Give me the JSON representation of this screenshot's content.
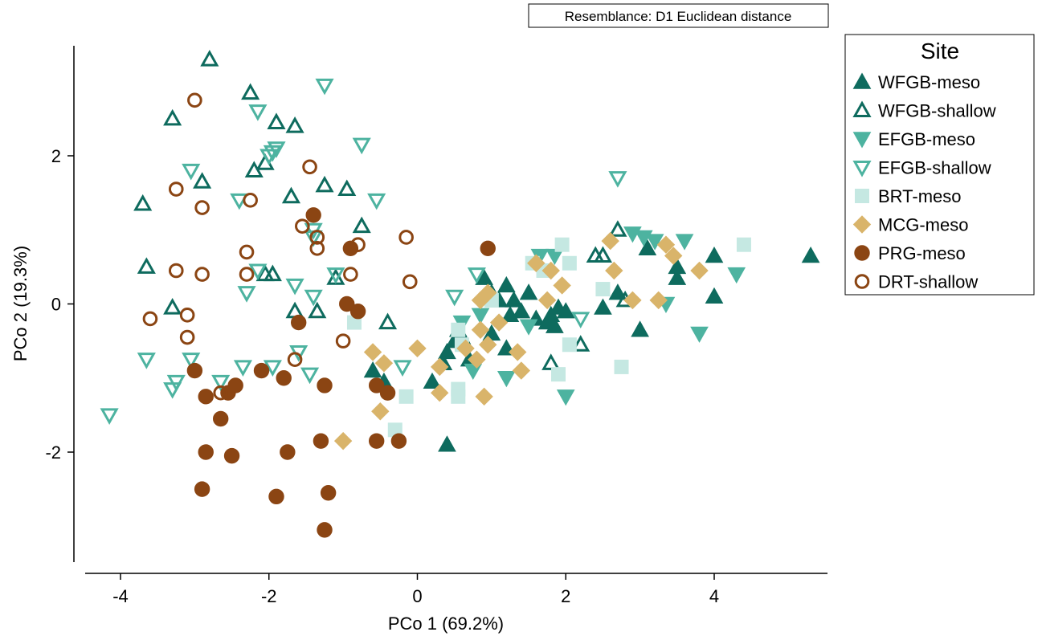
{
  "chart_data": {
    "type": "scatter",
    "title": "",
    "annotation": "Resemblance: D1 Euclidean distance",
    "xlabel": "PCo 1 (69.2%)",
    "ylabel": "PCo 2 (19.3%)",
    "xlim": [
      -4.5,
      5.6
    ],
    "ylim": [
      -3.5,
      3.4
    ],
    "xticks": [
      -4,
      -2,
      0,
      2,
      4
    ],
    "yticks": [
      -2,
      0,
      2
    ],
    "xtick_labels": [
      "-4",
      "-2",
      "0",
      "2",
      "4"
    ],
    "ytick_labels": [
      "-2",
      "0",
      "2"
    ],
    "grid": false,
    "legend_title": "Site",
    "legend_position": "top-right",
    "series": [
      {
        "name": "WFGB-meso",
        "marker": "triangle-up",
        "fill": true,
        "color": "#0e6b5e",
        "points": [
          [
            0.4,
            -0.65
          ],
          [
            0.35,
            -0.8
          ],
          [
            0.5,
            -0.5
          ],
          [
            0.6,
            -0.45
          ],
          [
            0.55,
            -0.35
          ],
          [
            0.7,
            -0.75
          ],
          [
            0.9,
            0.35
          ],
          [
            1.0,
            0.15
          ],
          [
            1.1,
            0.05
          ],
          [
            1.2,
            0.25
          ],
          [
            1.3,
            0.05
          ],
          [
            1.25,
            -0.15
          ],
          [
            1.4,
            -0.1
          ],
          [
            1.5,
            0.15
          ],
          [
            1.6,
            -0.2
          ],
          [
            1.75,
            -0.25
          ],
          [
            1.8,
            -0.15
          ],
          [
            1.85,
            -0.3
          ],
          [
            1.9,
            -0.05
          ],
          [
            2.0,
            -0.1
          ],
          [
            1.2,
            -0.6
          ],
          [
            1.0,
            -0.4
          ],
          [
            2.5,
            -0.05
          ],
          [
            2.7,
            0.15
          ],
          [
            3.0,
            -0.35
          ],
          [
            3.1,
            0.75
          ],
          [
            3.5,
            0.5
          ],
          [
            3.5,
            0.35
          ],
          [
            4.0,
            0.65
          ],
          [
            4.0,
            0.1
          ],
          [
            5.3,
            0.65
          ],
          [
            0.4,
            -1.9
          ],
          [
            -0.6,
            -0.9
          ],
          [
            -0.45,
            -1.05
          ],
          [
            0.2,
            -1.05
          ]
        ]
      },
      {
        "name": "WFGB-shallow",
        "marker": "triangle-up",
        "fill": false,
        "color": "#0e6b5e",
        "points": [
          [
            -2.8,
            3.3
          ],
          [
            -3.3,
            2.5
          ],
          [
            -2.25,
            2.85
          ],
          [
            -1.9,
            2.45
          ],
          [
            -1.65,
            2.4
          ],
          [
            -2.9,
            1.65
          ],
          [
            -2.2,
            1.8
          ],
          [
            -2.05,
            1.9
          ],
          [
            -3.7,
            1.35
          ],
          [
            -1.7,
            1.45
          ],
          [
            -1.25,
            1.6
          ],
          [
            -0.95,
            1.55
          ],
          [
            -0.75,
            1.05
          ],
          [
            -3.65,
            0.5
          ],
          [
            -2.05,
            0.4
          ],
          [
            -1.95,
            0.4
          ],
          [
            -1.1,
            0.35
          ],
          [
            -3.3,
            -0.05
          ],
          [
            -1.65,
            -0.1
          ],
          [
            -1.35,
            -0.1
          ],
          [
            -0.4,
            -0.25
          ],
          [
            1.8,
            -0.8
          ],
          [
            2.2,
            -0.55
          ],
          [
            2.7,
            1.0
          ],
          [
            2.4,
            0.65
          ],
          [
            2.5,
            0.65
          ],
          [
            2.8,
            0.05
          ]
        ]
      },
      {
        "name": "EFGB-meso",
        "marker": "triangle-down",
        "fill": true,
        "color": "#4db3a0",
        "points": [
          [
            2.9,
            0.95
          ],
          [
            3.05,
            0.9
          ],
          [
            3.2,
            0.85
          ],
          [
            3.6,
            0.85
          ],
          [
            4.3,
            0.4
          ],
          [
            3.35,
            0.0
          ],
          [
            3.8,
            -0.4
          ],
          [
            2.0,
            -1.25
          ],
          [
            1.65,
            0.65
          ],
          [
            1.85,
            0.65
          ],
          [
            0.75,
            -0.9
          ],
          [
            1.2,
            -1.0
          ],
          [
            0.6,
            -0.25
          ],
          [
            0.85,
            -0.15
          ],
          [
            1.5,
            -0.3
          ]
        ]
      },
      {
        "name": "EFGB-shallow",
        "marker": "triangle-down",
        "fill": false,
        "color": "#4db3a0",
        "points": [
          [
            -1.25,
            2.95
          ],
          [
            -2.15,
            2.6
          ],
          [
            -1.9,
            2.1
          ],
          [
            -1.95,
            2.05
          ],
          [
            -2.0,
            2.0
          ],
          [
            -0.75,
            2.15
          ],
          [
            -3.05,
            1.8
          ],
          [
            -0.55,
            1.4
          ],
          [
            -2.4,
            1.4
          ],
          [
            -1.4,
            1.0
          ],
          [
            -1.4,
            0.9
          ],
          [
            -2.15,
            0.45
          ],
          [
            -1.1,
            0.4
          ],
          [
            -1.65,
            0.25
          ],
          [
            -1.4,
            0.1
          ],
          [
            -2.3,
            0.15
          ],
          [
            -3.65,
            -0.75
          ],
          [
            -3.05,
            -0.75
          ],
          [
            -2.65,
            -1.05
          ],
          [
            -2.35,
            -0.85
          ],
          [
            -1.95,
            -0.85
          ],
          [
            -1.6,
            -0.65
          ],
          [
            -1.45,
            -0.95
          ],
          [
            -3.25,
            -1.05
          ],
          [
            -3.3,
            -1.15
          ],
          [
            -4.15,
            -1.5
          ],
          [
            2.7,
            1.7
          ],
          [
            2.2,
            -0.2
          ],
          [
            0.8,
            0.4
          ],
          [
            0.5,
            0.1
          ],
          [
            -0.2,
            -0.85
          ]
        ]
      },
      {
        "name": "BRT-meso",
        "marker": "square",
        "fill": true,
        "color": "#c5e8e2",
        "points": [
          [
            4.4,
            0.8
          ],
          [
            2.5,
            0.2
          ],
          [
            2.75,
            -0.85
          ],
          [
            2.05,
            0.55
          ],
          [
            1.55,
            0.55
          ],
          [
            1.95,
            0.8
          ],
          [
            0.55,
            -0.35
          ],
          [
            0.6,
            -0.55
          ],
          [
            0.55,
            -1.15
          ],
          [
            0.55,
            -1.25
          ],
          [
            -0.15,
            -1.25
          ],
          [
            -0.3,
            -1.7
          ],
          [
            -0.85,
            -0.25
          ],
          [
            1.9,
            -0.95
          ],
          [
            1.0,
            0.05
          ],
          [
            2.05,
            -0.55
          ],
          [
            1.7,
            0.45
          ]
        ]
      },
      {
        "name": "MCG-meso",
        "marker": "diamond",
        "fill": true,
        "color": "#d9b46a",
        "points": [
          [
            -0.6,
            -0.65
          ],
          [
            -0.45,
            -0.8
          ],
          [
            -0.5,
            -1.45
          ],
          [
            -1.0,
            -1.85
          ],
          [
            0.0,
            -0.6
          ],
          [
            0.3,
            -0.85
          ],
          [
            0.3,
            -1.2
          ],
          [
            0.65,
            -0.6
          ],
          [
            0.8,
            -0.75
          ],
          [
            0.95,
            -0.55
          ],
          [
            0.85,
            -0.35
          ],
          [
            0.9,
            -1.25
          ],
          [
            1.35,
            -0.65
          ],
          [
            1.4,
            -0.9
          ],
          [
            1.6,
            0.55
          ],
          [
            1.95,
            0.25
          ],
          [
            2.6,
            0.85
          ],
          [
            2.65,
            0.45
          ],
          [
            2.9,
            0.05
          ],
          [
            3.25,
            0.05
          ],
          [
            3.35,
            0.8
          ],
          [
            3.45,
            0.65
          ],
          [
            3.8,
            0.45
          ],
          [
            0.95,
            0.15
          ],
          [
            0.85,
            0.05
          ],
          [
            1.75,
            0.05
          ],
          [
            1.1,
            -0.25
          ],
          [
            1.8,
            0.45
          ]
        ]
      },
      {
        "name": "PRG-meso",
        "marker": "circle",
        "fill": true,
        "color": "#8b4513",
        "points": [
          [
            -1.4,
            1.2
          ],
          [
            -0.9,
            0.75
          ],
          [
            -1.6,
            -0.25
          ],
          [
            -0.95,
            0.0
          ],
          [
            -0.8,
            -0.1
          ],
          [
            -3.0,
            -0.9
          ],
          [
            -2.1,
            -0.9
          ],
          [
            -2.85,
            -1.25
          ],
          [
            -2.55,
            -1.2
          ],
          [
            -2.45,
            -1.1
          ],
          [
            -1.8,
            -1.0
          ],
          [
            -1.25,
            -1.1
          ],
          [
            -2.65,
            -1.55
          ],
          [
            -2.85,
            -2.0
          ],
          [
            -2.5,
            -2.05
          ],
          [
            -1.75,
            -2.0
          ],
          [
            -1.3,
            -1.85
          ],
          [
            -2.9,
            -2.5
          ],
          [
            -1.9,
            -2.6
          ],
          [
            -1.2,
            -2.55
          ],
          [
            -1.25,
            -3.05
          ],
          [
            -0.55,
            -1.85
          ],
          [
            -0.25,
            -1.85
          ],
          [
            -0.55,
            -1.1
          ],
          [
            -0.4,
            -1.2
          ],
          [
            0.95,
            0.75
          ]
        ]
      },
      {
        "name": "DRT-shallow",
        "marker": "circle",
        "fill": false,
        "color": "#8b4513",
        "points": [
          [
            -3.0,
            2.75
          ],
          [
            -1.45,
            1.85
          ],
          [
            -3.25,
            1.55
          ],
          [
            -2.9,
            1.3
          ],
          [
            -2.25,
            1.4
          ],
          [
            -1.55,
            1.05
          ],
          [
            -1.35,
            0.75
          ],
          [
            -1.35,
            0.9
          ],
          [
            -0.8,
            0.8
          ],
          [
            -0.15,
            0.9
          ],
          [
            -2.3,
            0.7
          ],
          [
            -2.3,
            0.4
          ],
          [
            -3.25,
            0.45
          ],
          [
            -2.9,
            0.4
          ],
          [
            -0.9,
            0.4
          ],
          [
            -0.1,
            0.3
          ],
          [
            -3.6,
            -0.2
          ],
          [
            -3.1,
            -0.15
          ],
          [
            -3.1,
            -0.45
          ],
          [
            -1.0,
            -0.5
          ],
          [
            -1.65,
            -0.75
          ],
          [
            -2.65,
            -1.2
          ]
        ]
      }
    ]
  }
}
